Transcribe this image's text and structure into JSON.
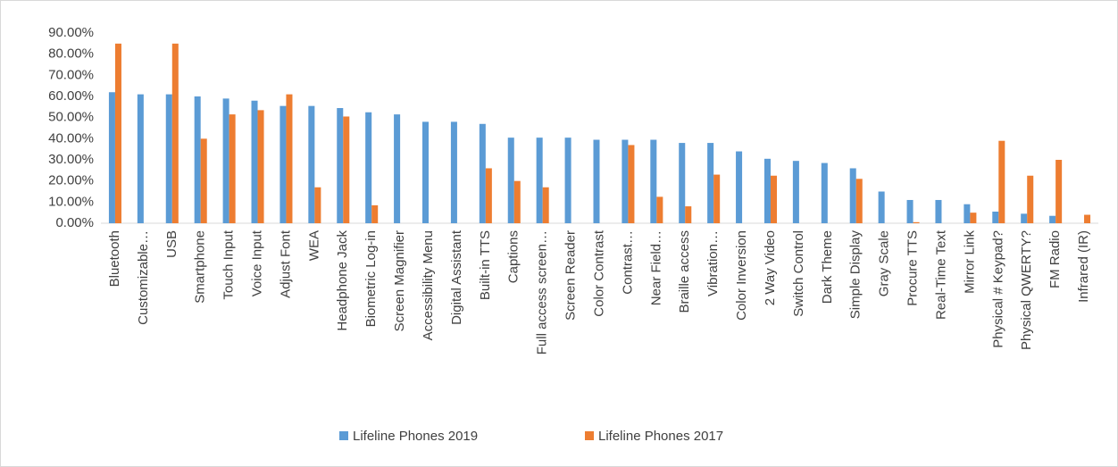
{
  "chart_data": {
    "type": "bar",
    "categories": [
      "Bluetooth",
      "Customizable…",
      "USB",
      "Smartphone",
      "Touch Input",
      "Voice Input",
      "Adjust Font",
      "WEA",
      "Headphone Jack",
      "Biometric Log-in",
      "Screen Magnifier",
      "Accessibility Menu",
      "Digital Assistant",
      "Built-in TTS",
      "Captions",
      "Full access screen…",
      "Screen Reader",
      "Color Contrast",
      "Contrast…",
      "Near Field…",
      "Braille access",
      "Vibration…",
      "Color Inversion",
      "2 Way Video",
      "Switch Control",
      "Dark Theme",
      "Simple Display",
      "Gray Scale",
      "Procure TTS",
      "Real-Time Text",
      "Mirror Link",
      "Physical # Keypad?",
      "Physical QWERTY?",
      "FM Radio",
      "Infrared (IR)"
    ],
    "series": [
      {
        "name": "Lifeline Phones 2019",
        "color": "#5b9bd5",
        "values": [
          62,
          61,
          61,
          60,
          59,
          58,
          55.5,
          55.5,
          54.5,
          52.5,
          51.5,
          48,
          48,
          47,
          40.5,
          40.5,
          40.5,
          39.5,
          39.5,
          39.5,
          38,
          38,
          34,
          30.5,
          29.5,
          28.5,
          26,
          15,
          11,
          11,
          9,
          5.5,
          4.5,
          3.5,
          0
        ]
      },
      {
        "name": "Lifeline Phones 2017",
        "color": "#ed7d31",
        "values": [
          85,
          0,
          85,
          40,
          51.5,
          53.5,
          61,
          17,
          50.5,
          8.5,
          0,
          0,
          0,
          26,
          20,
          17,
          0,
          0,
          37,
          12.5,
          8,
          23,
          0,
          22.5,
          0,
          0,
          21,
          0,
          0.5,
          0,
          5,
          39,
          22.5,
          30,
          4
        ]
      }
    ],
    "ylim": [
      0,
      90
    ],
    "yticks": [
      {
        "value": 0,
        "label": "0.00%"
      },
      {
        "value": 10,
        "label": "10.00%"
      },
      {
        "value": 20,
        "label": "20.00%"
      },
      {
        "value": 30,
        "label": "30.00%"
      },
      {
        "value": 40,
        "label": "40.00%"
      },
      {
        "value": 50,
        "label": "50.00%"
      },
      {
        "value": 60,
        "label": "60.00%"
      },
      {
        "value": 70,
        "label": "70.00%"
      },
      {
        "value": 80,
        "label": "80.00%"
      },
      {
        "value": 90,
        "label": "90.00%"
      }
    ],
    "legend": "bottom"
  }
}
